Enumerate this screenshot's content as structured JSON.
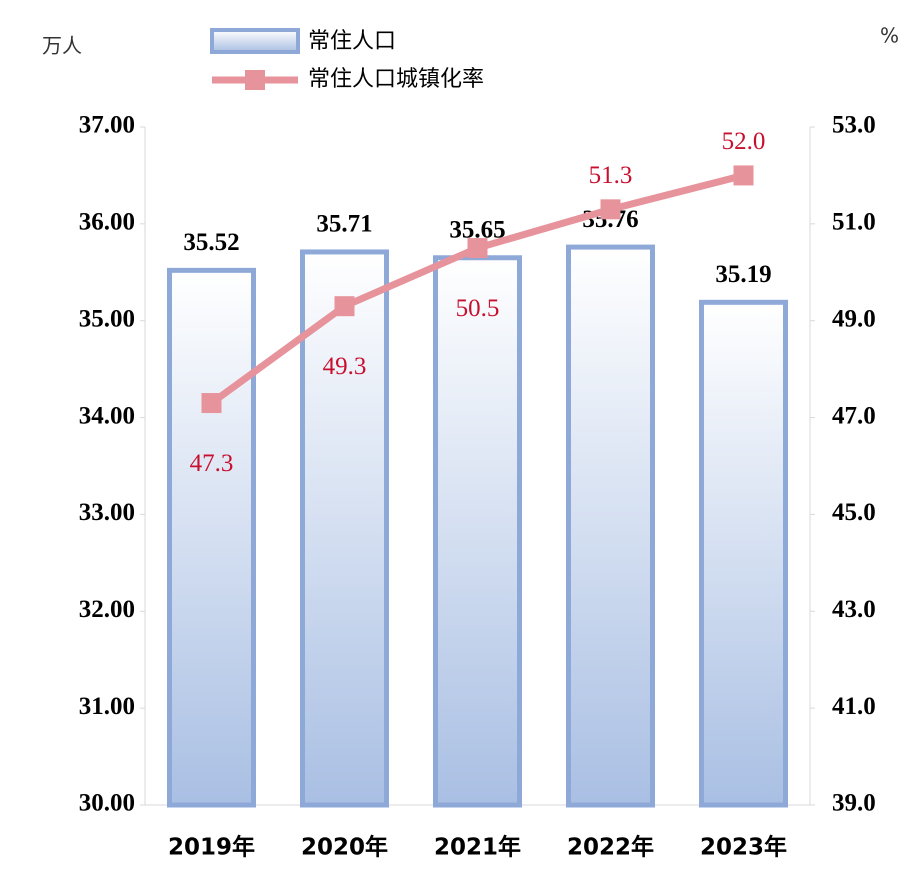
{
  "chart_data": {
    "type": "bar-line",
    "y_unit": "万人",
    "y2_unit": "%",
    "categories": [
      "2019年",
      "2020年",
      "2021年",
      "2022年",
      "2023年"
    ],
    "series": [
      {
        "name": "常住人口",
        "type": "bar",
        "color": "#8ea9d8",
        "values": [
          35.52,
          35.71,
          35.65,
          35.76,
          35.19
        ]
      },
      {
        "name": "常住人口城镇化率",
        "type": "line",
        "axis": "y2",
        "color": "#e7939b",
        "values": [
          47.3,
          49.3,
          50.5,
          51.3,
          52.0
        ],
        "value_labels": [
          "47.3",
          "49.3",
          "50.5",
          "51.3",
          "52.0"
        ]
      }
    ],
    "ylim": [
      30,
      37
    ],
    "yticks": [
      {
        "value": 30,
        "label": "30.00"
      },
      {
        "value": 31,
        "label": "31.00"
      },
      {
        "value": 32,
        "label": "32.00"
      },
      {
        "value": 33,
        "label": "33.00"
      },
      {
        "value": 34,
        "label": "34.00"
      },
      {
        "value": 35,
        "label": "35.00"
      },
      {
        "value": 36,
        "label": "36.00"
      },
      {
        "value": 37,
        "label": "37.00"
      }
    ],
    "y2lim": [
      39,
      53
    ],
    "y2ticks": [
      {
        "value": 39,
        "label": "39.0"
      },
      {
        "value": 41,
        "label": "41.0"
      },
      {
        "value": 43,
        "label": "43.0"
      },
      {
        "value": 45,
        "label": "45.0"
      },
      {
        "value": 47,
        "label": "47.0"
      },
      {
        "value": 49,
        "label": "49.0"
      },
      {
        "value": 51,
        "label": "51.0"
      },
      {
        "value": 53,
        "label": "53.0"
      }
    ]
  }
}
